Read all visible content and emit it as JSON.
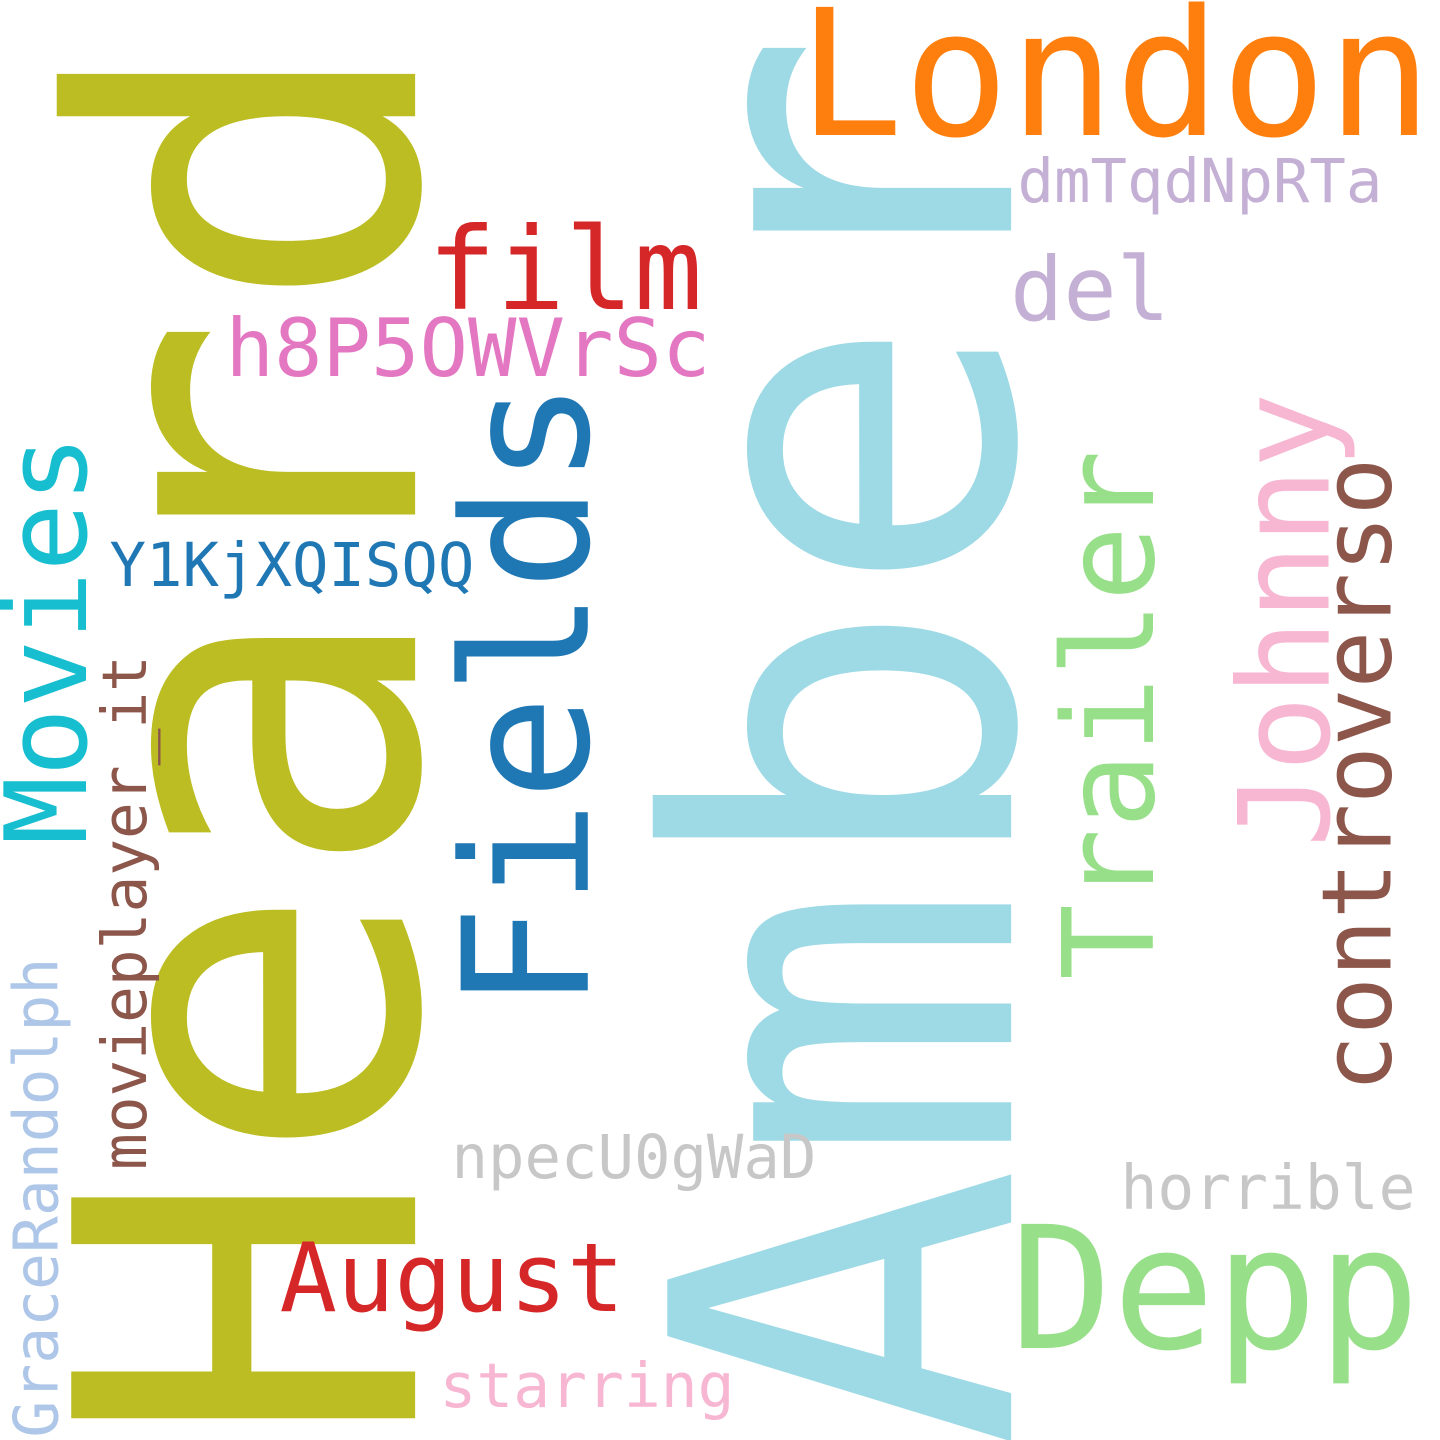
{
  "words": [
    {
      "key": "heard",
      "text": "Heard",
      "color": "#bcbd22",
      "rotated": true
    },
    {
      "key": "amber",
      "text": "Amber",
      "color": "#9edae5",
      "rotated": true
    },
    {
      "key": "london",
      "text": "London",
      "color": "#ff7f0e",
      "rotated": false
    },
    {
      "key": "fields",
      "text": "Fields",
      "color": "#1f77b4",
      "rotated": true
    },
    {
      "key": "trailer",
      "text": "Trailer",
      "color": "#98df8a",
      "rotated": true
    },
    {
      "key": "johnny",
      "text": "Johnny",
      "color": "#f7b6d2",
      "rotated": true
    },
    {
      "key": "depp",
      "text": "Depp",
      "color": "#98df8a",
      "rotated": false
    },
    {
      "key": "movies",
      "text": "Movies",
      "color": "#17becf",
      "rotated": true
    },
    {
      "key": "controverso",
      "text": "controverso",
      "color": "#8c564b",
      "rotated": true
    },
    {
      "key": "film",
      "text": "film",
      "color": "#d62728",
      "rotated": false
    },
    {
      "key": "h8p50wvrsc",
      "text": "h8P5OWVrSc",
      "color": "#e377c2",
      "rotated": false
    },
    {
      "key": "august",
      "text": "August",
      "color": "#d62728",
      "rotated": false
    },
    {
      "key": "del",
      "text": "del",
      "color": "#c5b0d5",
      "rotated": false
    },
    {
      "key": "movieplayer_it",
      "text": "movieplayer_it",
      "color": "#8c564b",
      "rotated": true
    },
    {
      "key": "y1kjxqisqq",
      "text": "Y1KjXQISQQ",
      "color": "#1f77b4",
      "rotated": false
    },
    {
      "key": "npecu0gwad",
      "text": "npecU0gWaD",
      "color": "#c7c7c7",
      "rotated": false
    },
    {
      "key": "dmtqdnprta",
      "text": "dmTqdNpRTa",
      "color": "#c5b0d5",
      "rotated": false
    },
    {
      "key": "horrible",
      "text": "horrible",
      "color": "#c7c7c7",
      "rotated": false
    },
    {
      "key": "starring",
      "text": "starring",
      "color": "#f7b6d2",
      "rotated": false
    },
    {
      "key": "gracerandolph",
      "text": "GraceRandolph",
      "color": "#aec7e8",
      "rotated": true
    }
  ]
}
